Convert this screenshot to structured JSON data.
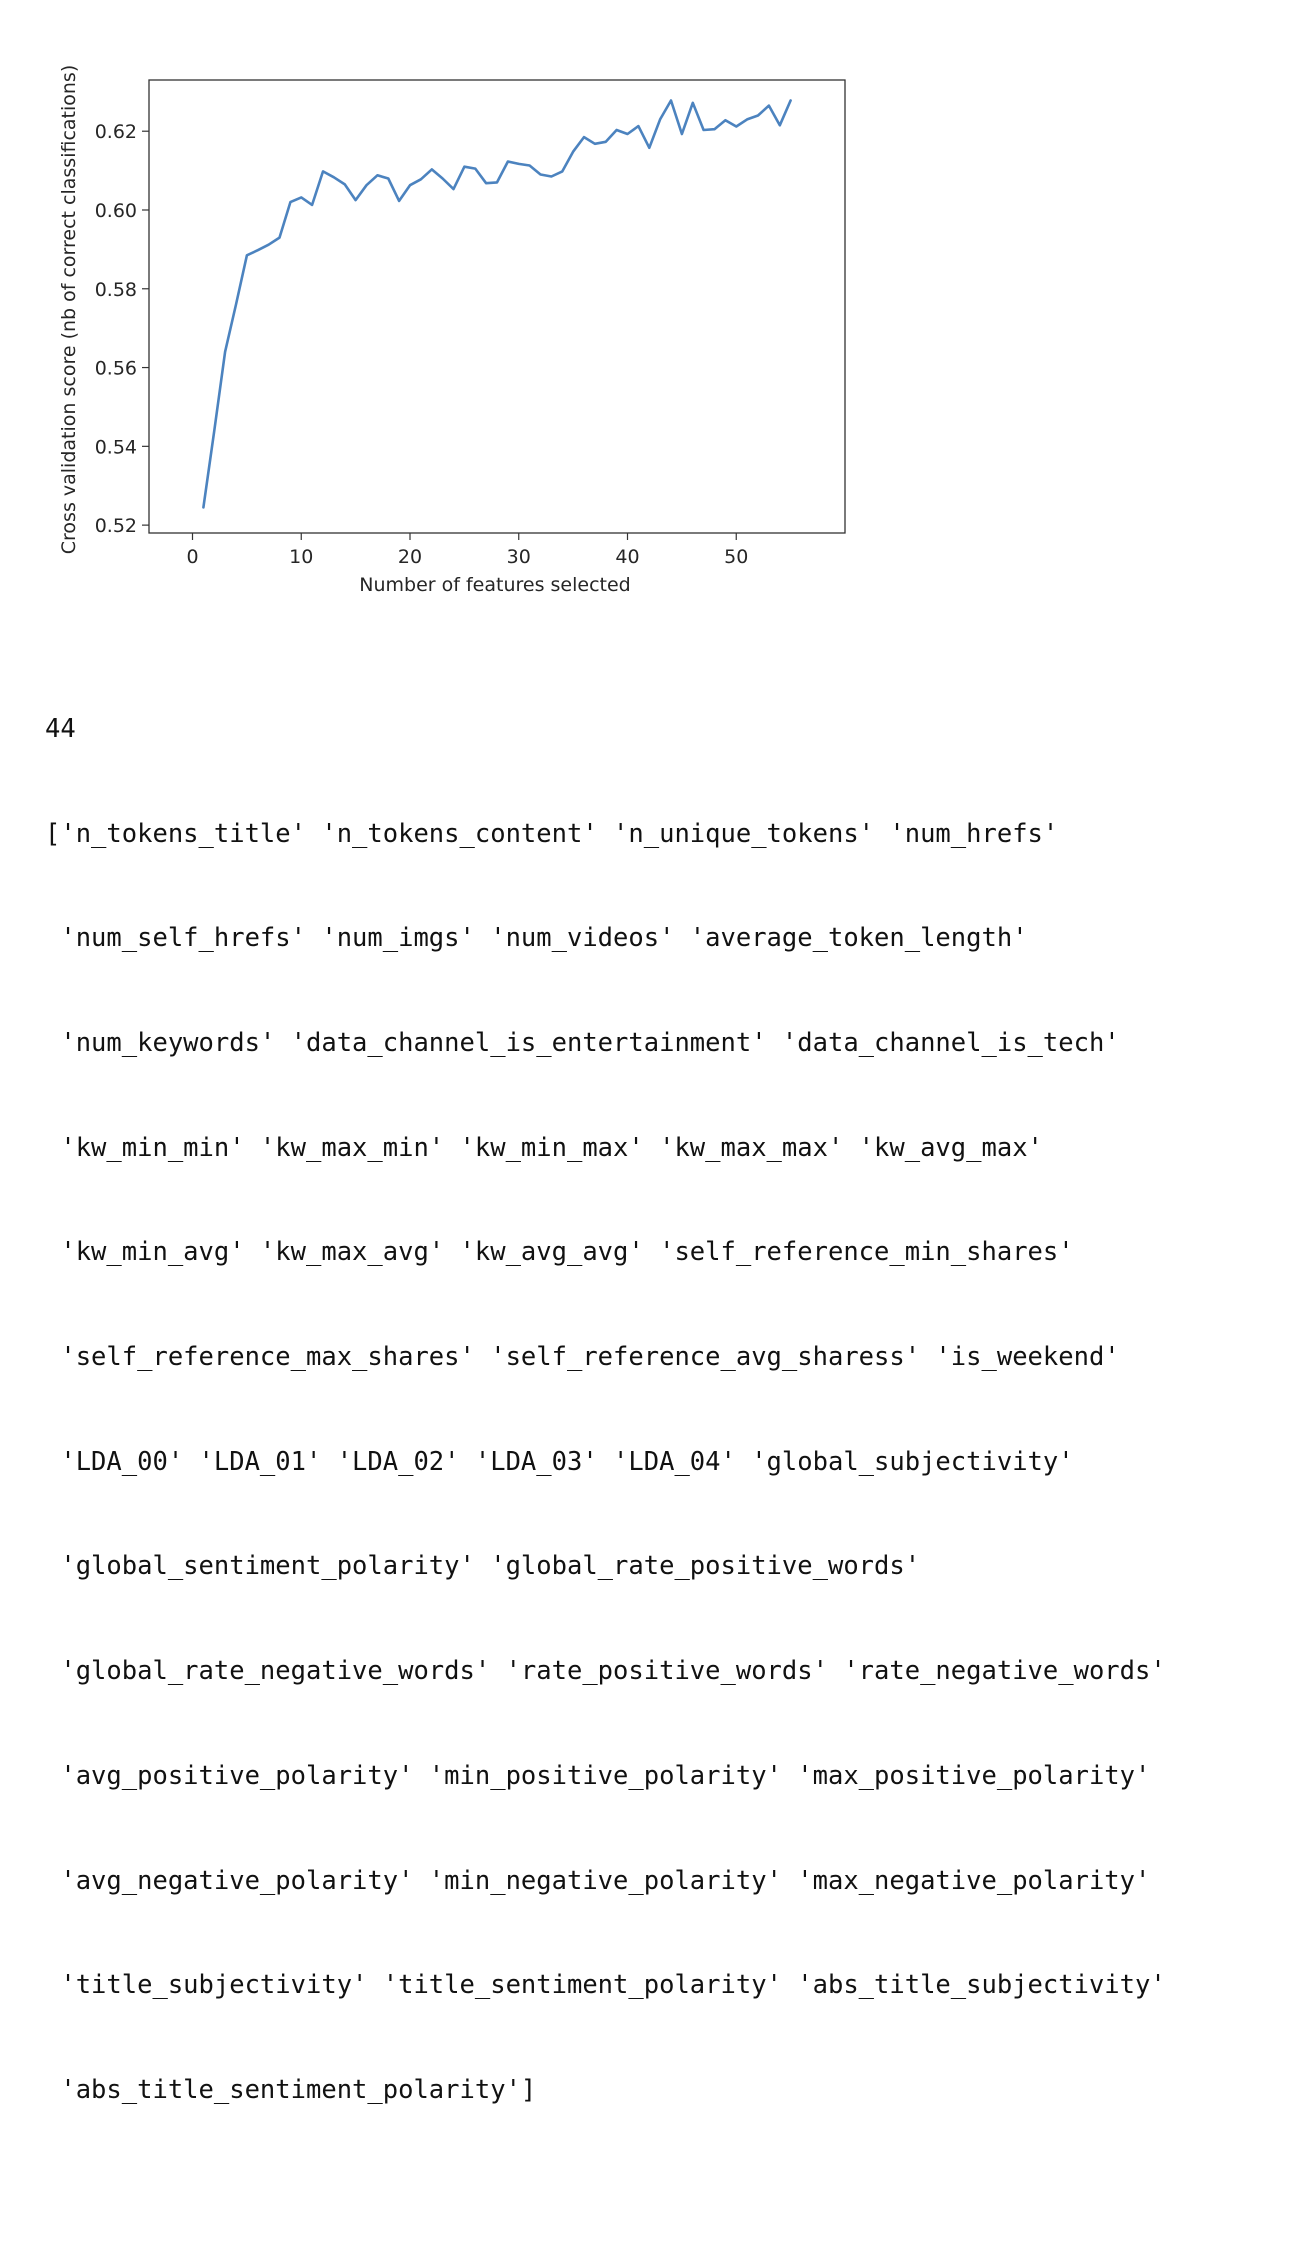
{
  "chart_data": {
    "type": "line",
    "title": "",
    "xlabel": "Number of features selected",
    "ylabel": "Cross validation score (nb of correct classifications)",
    "xlim": [
      -4,
      60
    ],
    "ylim": [
      0.518,
      0.633
    ],
    "xticks": [
      0,
      10,
      20,
      30,
      40,
      50
    ],
    "xtick_labels": [
      "0",
      "10",
      "20",
      "30",
      "40",
      "50"
    ],
    "yticks": [
      0.52,
      0.54,
      0.56,
      0.58,
      0.6,
      0.62
    ],
    "ytick_labels": [
      "0.52",
      "0.54",
      "0.56",
      "0.58",
      "0.60",
      "0.62"
    ],
    "grid": false,
    "line_color": "#4c83bf",
    "series": [
      {
        "name": "score",
        "x": [
          1,
          2,
          3,
          4,
          5,
          6,
          7,
          8,
          9,
          10,
          11,
          12,
          13,
          14,
          15,
          16,
          17,
          18,
          19,
          20,
          21,
          22,
          23,
          24,
          25,
          26,
          27,
          28,
          29,
          30,
          31,
          32,
          33,
          34,
          35,
          36,
          37,
          38,
          39,
          40,
          41,
          42,
          43,
          44,
          45,
          46,
          47,
          48,
          49,
          50,
          51,
          52,
          53,
          54,
          55
        ],
        "values": [
          0.5245,
          0.544,
          0.564,
          0.576,
          0.5885,
          0.5898,
          0.5912,
          0.593,
          0.602,
          0.6032,
          0.6013,
          0.6098,
          0.6083,
          0.6065,
          0.6025,
          0.6063,
          0.6088,
          0.608,
          0.6023,
          0.6063,
          0.6078,
          0.6103,
          0.608,
          0.6053,
          0.611,
          0.6105,
          0.6068,
          0.607,
          0.6123,
          0.6117,
          0.6113,
          0.609,
          0.6085,
          0.6098,
          0.6148,
          0.6185,
          0.6168,
          0.6173,
          0.6203,
          0.6193,
          0.6213,
          0.6158,
          0.623,
          0.6278,
          0.6193,
          0.6272,
          0.6203,
          0.6205,
          0.6228,
          0.6212,
          0.623,
          0.624,
          0.6265,
          0.6215,
          0.6278
        ]
      }
    ]
  },
  "output": {
    "count": "44",
    "lines": [
      "['n_tokens_title' 'n_tokens_content' 'n_unique_tokens' 'num_hrefs'",
      " 'num_self_hrefs' 'num_imgs' 'num_videos' 'average_token_length'",
      " 'num_keywords' 'data_channel_is_entertainment' 'data_channel_is_tech'",
      " 'kw_min_min' 'kw_max_min' 'kw_min_max' 'kw_max_max' 'kw_avg_max'",
      " 'kw_min_avg' 'kw_max_avg' 'kw_avg_avg' 'self_reference_min_shares'",
      " 'self_reference_max_shares' 'self_reference_avg_sharess' 'is_weekend'",
      " 'LDA_00' 'LDA_01' 'LDA_02' 'LDA_03' 'LDA_04' 'global_subjectivity'",
      " 'global_sentiment_polarity' 'global_rate_positive_words'",
      " 'global_rate_negative_words' 'rate_positive_words' 'rate_negative_words'",
      " 'avg_positive_polarity' 'min_positive_polarity' 'max_positive_polarity'",
      " 'avg_negative_polarity' 'min_negative_polarity' 'max_negative_polarity'",
      " 'title_subjectivity' 'title_sentiment_polarity' 'abs_title_subjectivity'",
      " 'abs_title_sentiment_polarity']"
    ]
  }
}
